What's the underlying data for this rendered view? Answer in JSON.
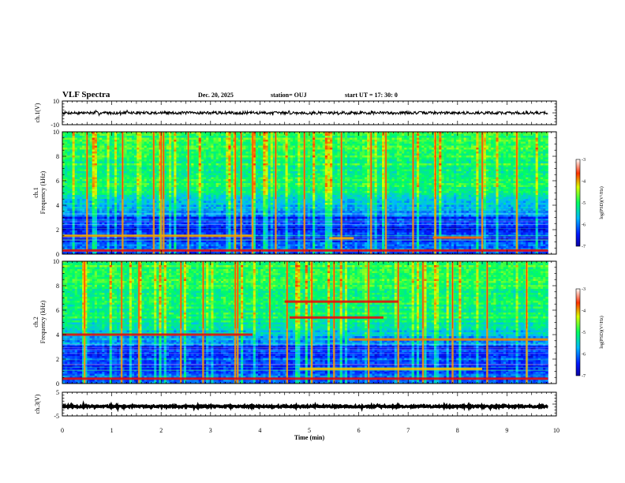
{
  "chart_data": {
    "type": "heatmap",
    "title": "VLF Spectra",
    "date": "Dec. 20, 2025",
    "station": "station= OUJ",
    "start": "start UT = 17: 30: 0",
    "xlabel": "Time (min)",
    "x_ticks": [
      "0",
      "1",
      "2",
      "3",
      "4",
      "5",
      "6",
      "7",
      "8",
      "9",
      "10"
    ],
    "xlim": [
      0,
      10
    ],
    "data_end_min": 9.83,
    "panels": [
      {
        "kind": "waveform",
        "ylabel": "ch.1(V)",
        "ylim": [
          -10,
          10
        ],
        "y_ticks": [
          "10",
          "-10"
        ],
        "level": 0.0,
        "noise_amplitude": 1.2
      },
      {
        "kind": "spectrogram",
        "ylabel_top": "ch.1",
        "ylabel_bottom": "Frequency (kHz)",
        "ylim": [
          0,
          10
        ],
        "y_ticks": [
          "0",
          "2",
          "4",
          "6",
          "8",
          "10"
        ],
        "colorbar": {
          "label": "log(PSD)(V²/Hz)",
          "range": [
            -7,
            -3
          ],
          "ticks": [
            "-3",
            "-4",
            "-5",
            "-6",
            "-7"
          ]
        },
        "seed": 17,
        "bright_lines_min": [
          0.5,
          1.22,
          1.85,
          2.0,
          2.05,
          2.55,
          3.5,
          3.62,
          3.85,
          4.32,
          4.9,
          5.65,
          6.25,
          6.55,
          7.1,
          7.55,
          8.5,
          9.2
        ],
        "horizontal_bands": [
          {
            "freq_khz": 1.5,
            "t_start": 0,
            "t_end": 3.85,
            "color": "#f3a000"
          },
          {
            "freq_khz": 1.3,
            "t_start": 5.4,
            "t_end": 5.9,
            "color": "#ffb000"
          },
          {
            "freq_khz": 1.35,
            "t_start": 7.5,
            "t_end": 8.5,
            "color": "#ff6a00"
          },
          {
            "freq_khz": 0.3,
            "t_start": 0,
            "t_end": 9.83,
            "color": "#e01010"
          }
        ]
      },
      {
        "kind": "spectrogram",
        "ylabel_top": "ch.2",
        "ylabel_bottom": "Frequency (kHz)",
        "ylim": [
          0,
          10
        ],
        "y_ticks": [
          "0",
          "2",
          "4",
          "6",
          "8",
          "10"
        ],
        "colorbar": {
          "label": "log(PSD)(V²/Hz)",
          "range": [
            -7,
            -3
          ],
          "ticks": [
            "-3",
            "-4",
            "-5",
            "-6",
            "-7"
          ]
        },
        "seed": 29,
        "bright_lines_min": [
          0.45,
          1.2,
          1.55,
          2.4,
          2.85,
          3.5,
          3.55,
          4.2,
          4.55,
          5.05,
          5.5,
          6.2,
          6.8,
          7.3,
          7.9,
          8.6,
          9.4
        ],
        "horizontal_bands": [
          {
            "freq_khz": 4.0,
            "t_start": 0,
            "t_end": 3.85,
            "color": "#e01010"
          },
          {
            "freq_khz": 3.6,
            "t_start": 5.8,
            "t_end": 9.83,
            "color": "#f08000"
          },
          {
            "freq_khz": 6.7,
            "t_start": 4.5,
            "t_end": 6.8,
            "color": "#e01010"
          },
          {
            "freq_khz": 5.4,
            "t_start": 4.6,
            "t_end": 6.5,
            "color": "#e01010"
          },
          {
            "freq_khz": 1.2,
            "t_start": 4.8,
            "t_end": 8.5,
            "color": "#f3c000"
          },
          {
            "freq_khz": 0.4,
            "t_start": 0,
            "t_end": 9.83,
            "color": "#e01010"
          }
        ]
      },
      {
        "kind": "waveform",
        "ylabel": "ch.3(V)",
        "ylim": [
          -5,
          5
        ],
        "y_ticks": [
          "5",
          "-5"
        ],
        "level": -1.0,
        "noise_amplitude": 0.35
      }
    ]
  }
}
